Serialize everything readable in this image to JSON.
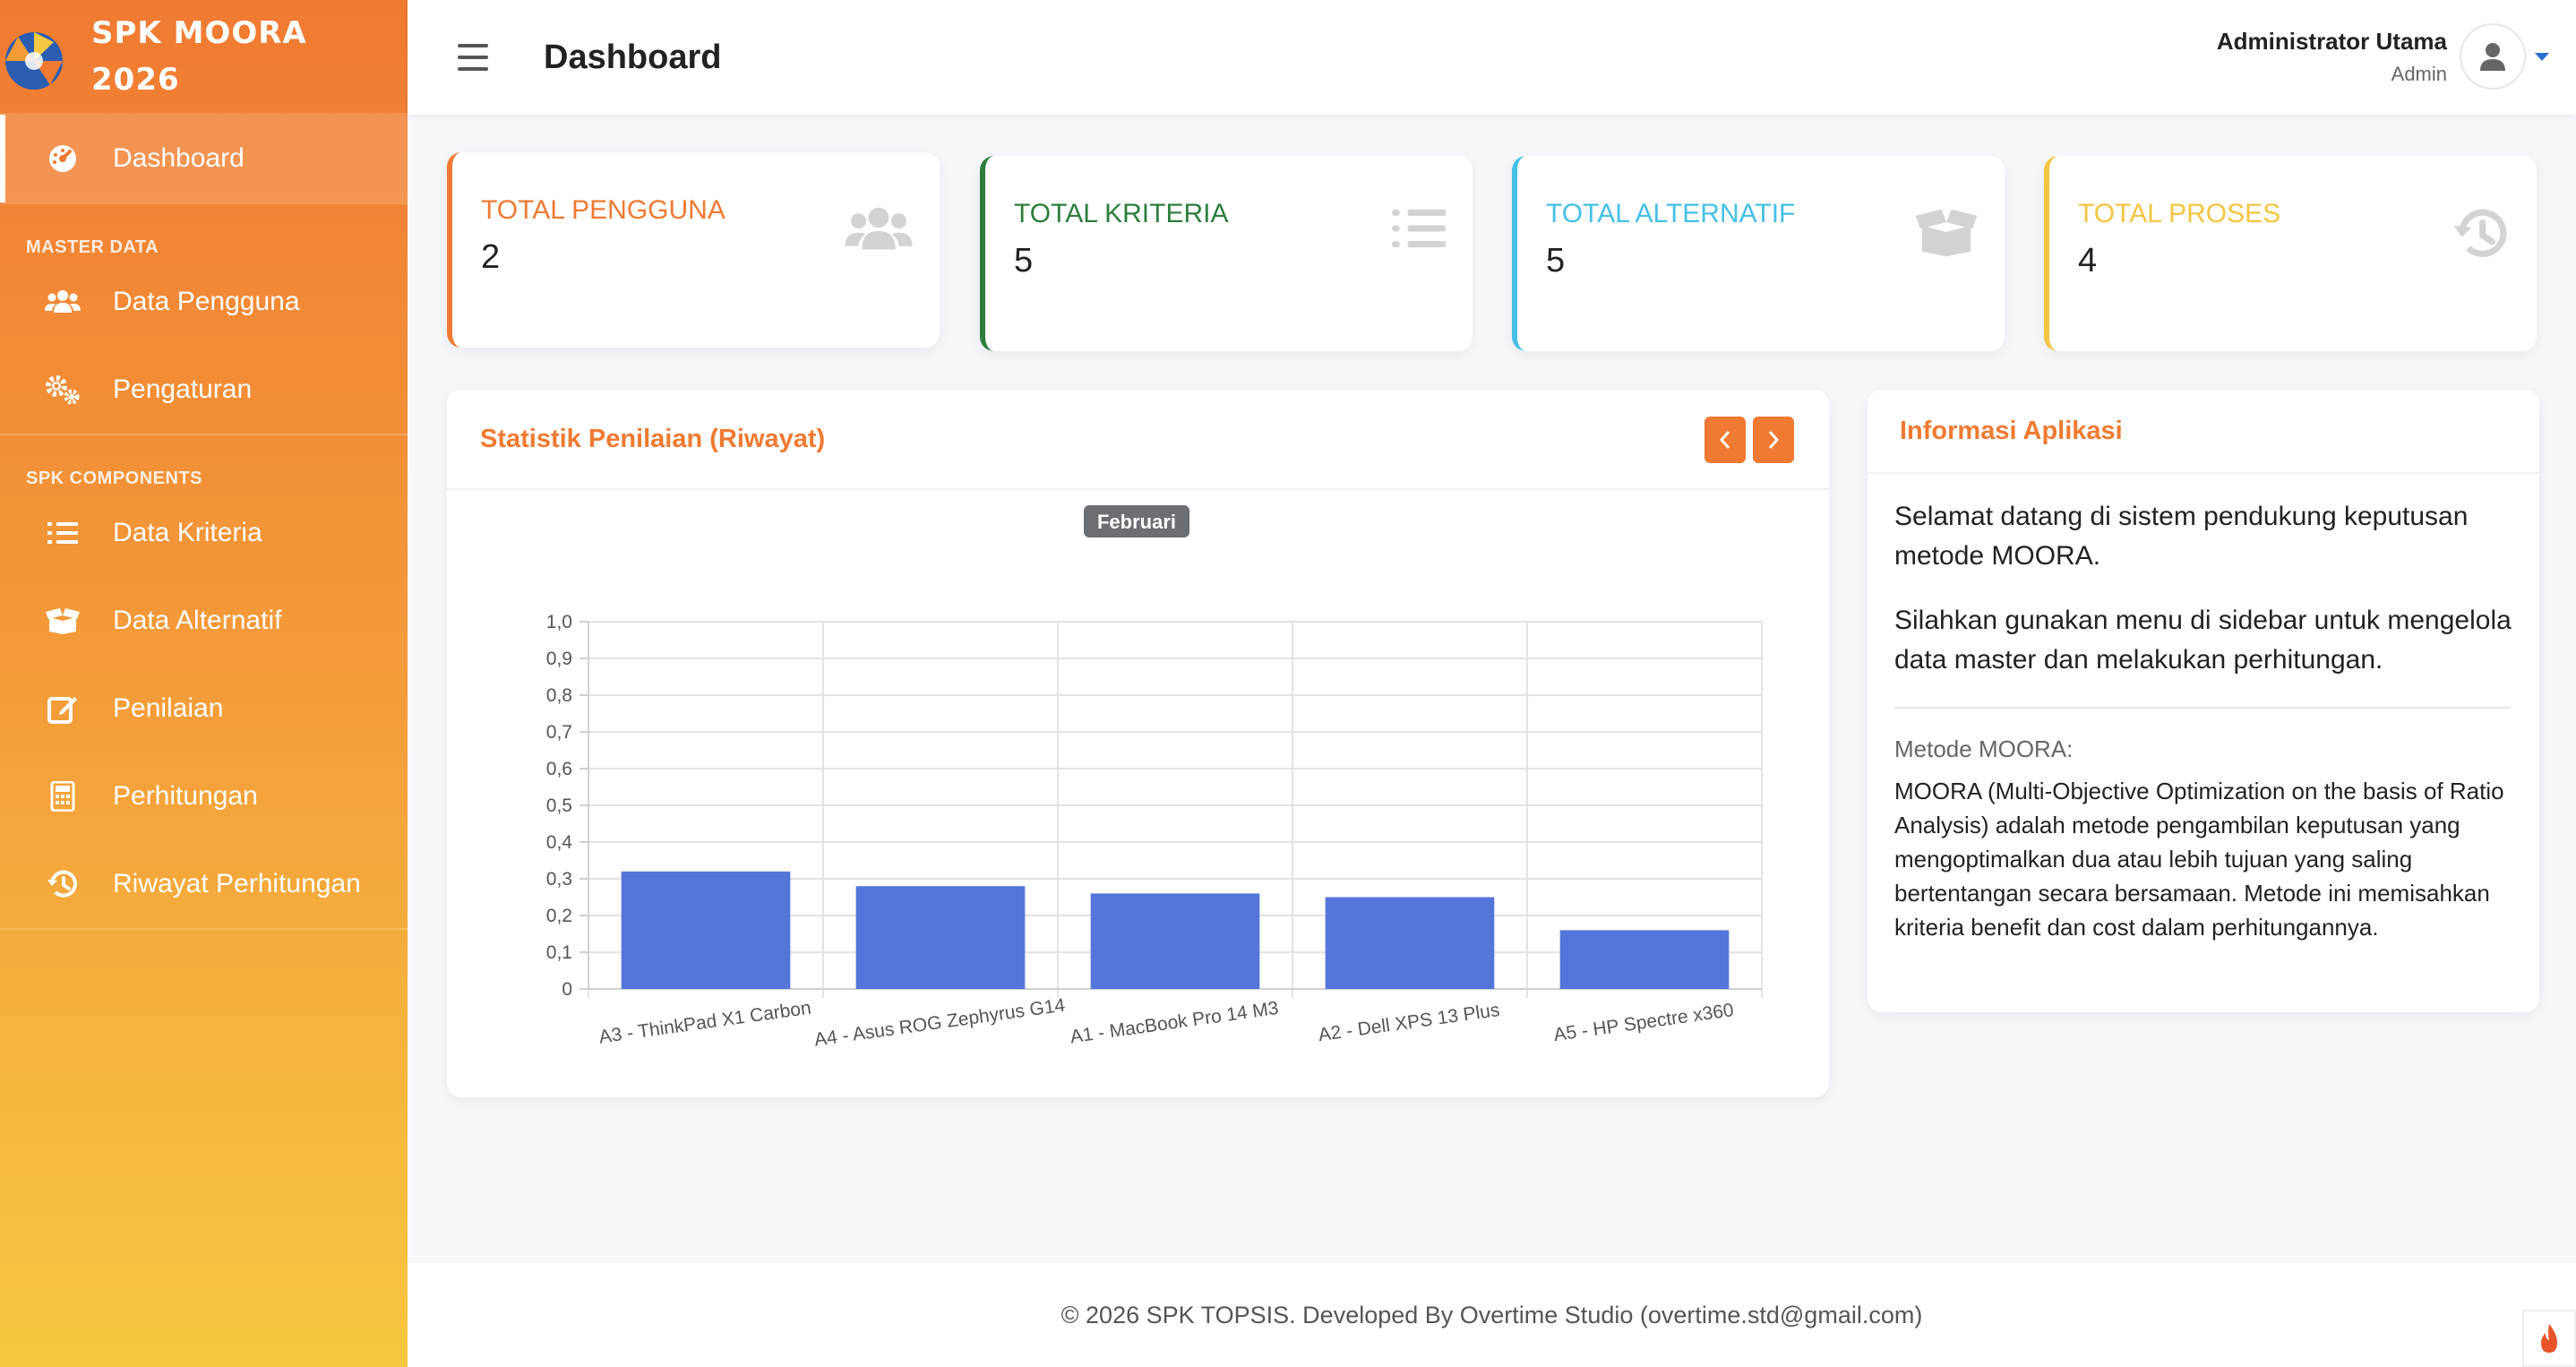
{
  "brand": {
    "line1": "SPK MOORA",
    "line2": "2026"
  },
  "sidebar": {
    "active": {
      "label": "Dashboard",
      "icon": "tachometer-icon"
    },
    "sections": [
      {
        "heading": "MASTER DATA",
        "items": [
          {
            "label": "Data Pengguna",
            "icon": "users-icon"
          },
          {
            "label": "Pengaturan",
            "icon": "gears-icon"
          }
        ]
      },
      {
        "heading": "SPK COMPONENTS",
        "items": [
          {
            "label": "Data Kriteria",
            "icon": "list-icon"
          },
          {
            "label": "Data Alternatif",
            "icon": "box-open-icon"
          },
          {
            "label": "Penilaian",
            "icon": "edit-icon"
          },
          {
            "label": "Perhitungan",
            "icon": "calculator-icon"
          },
          {
            "label": "Riwayat Perhitungan",
            "icon": "history-icon"
          }
        ]
      }
    ]
  },
  "topbar": {
    "title": "Dashboard",
    "user_name": "Administrator Utama",
    "user_role": "Admin"
  },
  "stats": [
    {
      "label": "TOTAL PENGGUNA",
      "value": "2",
      "color": "#f07a32",
      "icon": "users-icon"
    },
    {
      "label": "TOTAL KRITERIA",
      "value": "5",
      "color": "#2e7d3e",
      "icon": "list-icon"
    },
    {
      "label": "TOTAL ALTERNATIF",
      "value": "5",
      "color": "#45c0e6",
      "icon": "box-open-icon"
    },
    {
      "label": "TOTAL PROSES",
      "value": "4",
      "color": "#f4c542",
      "icon": "history-icon"
    }
  ],
  "chart_card": {
    "title": "Statistik Penilaian (Riwayat)"
  },
  "chart_data": {
    "type": "bar",
    "title": "Februari",
    "categories": [
      "A3 - ThinkPad X1 Carbon",
      "A4 - Asus ROG Zephyrus G14",
      "A1 - MacBook Pro 14 M3",
      "A2 - Dell XPS 13 Plus",
      "A5 - HP Spectre x360"
    ],
    "values": [
      0.32,
      0.28,
      0.26,
      0.25,
      0.16
    ],
    "ylim": [
      0,
      1.0
    ],
    "yticks": [
      "0",
      "0,1",
      "0,2",
      "0,3",
      "0,4",
      "0,5",
      "0,6",
      "0,7",
      "0,8",
      "0,9",
      "1,0"
    ],
    "bar_color": "#5475d9",
    "grid": true
  },
  "info": {
    "title": "Informasi Aplikasi",
    "p1": "Selamat datang di sistem pendukung keputusan metode MOORA.",
    "p2": "Silahkan gunakan menu di sidebar untuk mengelola data master dan melakukan perhitungan.",
    "method_label": "Metode MOORA:",
    "method_desc": "MOORA (Multi-Objective Optimization on the basis of Ratio Analysis) adalah metode pengambilan keputusan yang mengoptimalkan dua atau lebih tujuan yang saling bertentangan secara bersamaan. Metode ini memisahkan kriteria benefit dan cost dalam perhitungannya."
  },
  "footer": {
    "text": "© 2026 SPK TOPSIS. Developed By Overtime Studio (overtime.std@gmail.com)"
  }
}
